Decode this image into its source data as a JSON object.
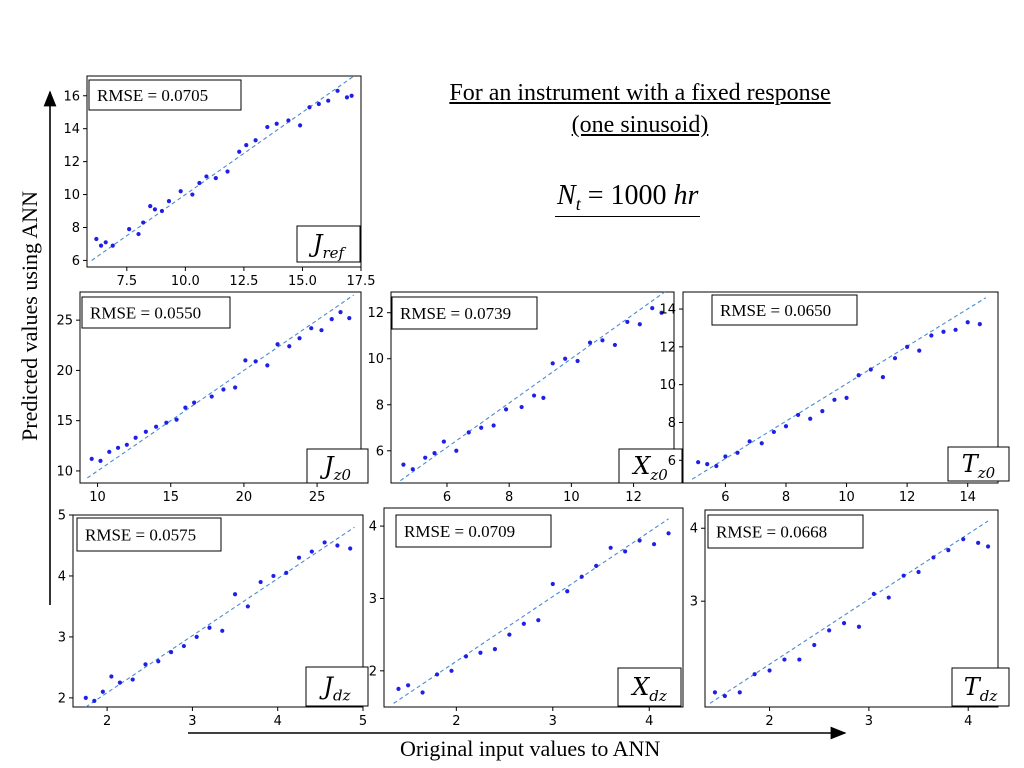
{
  "title_line1": "For an instrument with a fixed response",
  "title_line2": "(one sinusoid)",
  "equation": {
    "symbol": "N",
    "subscript": "t",
    "rest": " = 1000 ",
    "unit": "hr"
  },
  "xlabel": "Original input values to ANN",
  "ylabel": "Predicted values using ANN",
  "colors": {
    "points": "#1f1fe6",
    "fit_line": "#4a8bd0",
    "axis": "#000000"
  },
  "chart_data": [
    {
      "type": "scatter",
      "id": "jref",
      "panel_label": {
        "base": "J",
        "sub": "ref"
      },
      "rmse": "RMSE = 0.0705",
      "xlim": [
        5.8,
        17.5
      ],
      "ylim": [
        5.6,
        17.2
      ],
      "xticks": [
        7.5,
        10.0,
        12.5,
        15.0,
        17.5
      ],
      "xtick_labels": [
        "7.5",
        "10.0",
        "12.5",
        "15.0",
        "17.5"
      ],
      "yticks": [
        6,
        8,
        10,
        12,
        14,
        16
      ],
      "ytick_labels": [
        "6",
        "8",
        "10",
        "12",
        "14",
        "16"
      ],
      "fit_line": [
        [
          6.0,
          6.0
        ],
        [
          17.2,
          17.2
        ]
      ],
      "x": [
        6.2,
        6.4,
        6.6,
        6.9,
        7.6,
        8.0,
        8.2,
        8.5,
        8.7,
        9.0,
        9.3,
        9.8,
        10.3,
        10.6,
        10.9,
        11.3,
        11.8,
        12.3,
        12.6,
        13.0,
        13.5,
        13.9,
        14.4,
        14.9,
        15.3,
        15.7,
        16.1,
        16.5,
        16.9,
        17.1
      ],
      "y": [
        7.3,
        6.9,
        7.1,
        6.9,
        7.9,
        7.6,
        8.3,
        9.3,
        9.1,
        9.0,
        9.6,
        10.2,
        10.0,
        10.7,
        11.1,
        11.0,
        11.4,
        12.6,
        13.0,
        13.3,
        14.1,
        14.3,
        14.5,
        14.2,
        15.3,
        15.5,
        15.7,
        16.3,
        15.9,
        16.0
      ]
    },
    {
      "type": "scatter",
      "id": "jz0",
      "panel_label": {
        "base": "J",
        "sub": "z0"
      },
      "rmse": "RMSE = 0.0550",
      "xlim": [
        8.8,
        28.0
      ],
      "ylim": [
        8.8,
        27.8
      ],
      "xticks": [
        10,
        15,
        20,
        25
      ],
      "xtick_labels": [
        "10",
        "15",
        "20",
        "25"
      ],
      "yticks": [
        10,
        15,
        20,
        25
      ],
      "ytick_labels": [
        "10",
        "15",
        "20",
        "25"
      ],
      "fit_line": [
        [
          9.3,
          9.3
        ],
        [
          27.5,
          27.5
        ]
      ],
      "x": [
        9.6,
        10.2,
        10.8,
        11.4,
        12.0,
        12.6,
        13.3,
        14.0,
        14.7,
        15.4,
        16.0,
        16.6,
        17.8,
        18.6,
        19.4,
        20.1,
        20.8,
        21.6,
        22.3,
        23.1,
        23.8,
        24.6,
        25.3,
        26.0,
        26.6,
        27.2
      ],
      "y": [
        11.2,
        11.0,
        11.9,
        12.3,
        12.6,
        13.3,
        13.9,
        14.4,
        14.8,
        15.1,
        16.3,
        16.8,
        17.4,
        18.1,
        18.3,
        21.0,
        20.9,
        20.5,
        22.6,
        22.4,
        23.2,
        24.2,
        24.0,
        25.1,
        25.8,
        25.2
      ]
    },
    {
      "type": "scatter",
      "id": "xz0",
      "panel_label": {
        "base": "X",
        "sub": "z0"
      },
      "rmse": "RMSE = 0.0739",
      "xlim": [
        4.2,
        13.3
      ],
      "ylim": [
        4.6,
        12.9
      ],
      "xticks": [
        6,
        8,
        10,
        12
      ],
      "xtick_labels": [
        "6",
        "8",
        "10",
        "12"
      ],
      "yticks": [
        6,
        8,
        10,
        12
      ],
      "ytick_labels": [
        "6",
        "8",
        "10",
        "12"
      ],
      "fit_line": [
        [
          4.5,
          4.7
        ],
        [
          13.0,
          12.9
        ]
      ],
      "x": [
        4.6,
        4.9,
        5.3,
        5.6,
        5.9,
        6.3,
        6.7,
        7.1,
        7.5,
        7.9,
        8.4,
        8.8,
        9.1,
        9.4,
        9.8,
        10.2,
        10.6,
        11.0,
        11.4,
        11.8,
        12.2,
        12.6,
        12.9
      ],
      "y": [
        5.4,
        5.2,
        5.7,
        5.9,
        6.4,
        6.0,
        6.8,
        7.0,
        7.1,
        7.8,
        7.9,
        8.4,
        8.3,
        9.8,
        10.0,
        9.9,
        10.7,
        10.8,
        10.6,
        11.6,
        11.5,
        12.2,
        12.0
      ]
    },
    {
      "type": "scatter",
      "id": "tz0",
      "panel_label": {
        "base": "T",
        "sub": "z0"
      },
      "rmse": "RMSE = 0.0650",
      "xlim": [
        4.6,
        15.0
      ],
      "ylim": [
        4.8,
        14.9
      ],
      "xticks": [
        6,
        8,
        10,
        12,
        14
      ],
      "xtick_labels": [
        "6",
        "8",
        "10",
        "12",
        "14"
      ],
      "yticks": [
        6,
        8,
        10,
        12,
        14
      ],
      "ytick_labels": [
        "6",
        "8",
        "10",
        "12",
        "14"
      ],
      "fit_line": [
        [
          4.9,
          5.0
        ],
        [
          14.6,
          14.6
        ]
      ],
      "x": [
        5.1,
        5.4,
        5.7,
        6.0,
        6.4,
        6.8,
        7.2,
        7.6,
        8.0,
        8.4,
        8.8,
        9.2,
        9.6,
        10.0,
        10.4,
        10.8,
        11.2,
        11.6,
        12.0,
        12.4,
        12.8,
        13.2,
        13.6,
        14.0,
        14.4
      ],
      "y": [
        5.9,
        5.8,
        5.7,
        6.2,
        6.4,
        7.0,
        6.9,
        7.5,
        7.8,
        8.4,
        8.2,
        8.6,
        9.2,
        9.3,
        10.5,
        10.8,
        10.4,
        11.4,
        12.0,
        11.8,
        12.6,
        12.8,
        12.9,
        13.3,
        13.2
      ]
    },
    {
      "type": "scatter",
      "id": "jdz",
      "panel_label": {
        "base": "J",
        "sub": "dz"
      },
      "rmse": "RMSE = 0.0575",
      "xlim": [
        1.6,
        5.0
      ],
      "ylim": [
        1.85,
        5.0
      ],
      "xticks": [
        2,
        3,
        4,
        5
      ],
      "xtick_labels": [
        "2",
        "3",
        "4",
        "5"
      ],
      "yticks": [
        2,
        3,
        4,
        5
      ],
      "ytick_labels": [
        "2",
        "3",
        "4",
        "5"
      ],
      "fit_line": [
        [
          1.75,
          1.85
        ],
        [
          4.9,
          4.8
        ]
      ],
      "x": [
        1.75,
        1.85,
        1.95,
        2.05,
        2.15,
        2.3,
        2.45,
        2.6,
        2.75,
        2.9,
        3.05,
        3.2,
        3.35,
        3.5,
        3.65,
        3.8,
        3.95,
        4.1,
        4.25,
        4.4,
        4.55,
        4.7,
        4.85
      ],
      "y": [
        2.0,
        1.95,
        2.1,
        2.35,
        2.25,
        2.3,
        2.55,
        2.6,
        2.75,
        2.85,
        3.0,
        3.15,
        3.1,
        3.7,
        3.5,
        3.9,
        4.0,
        4.05,
        4.3,
        4.4,
        4.55,
        4.5,
        4.45
      ]
    },
    {
      "type": "scatter",
      "id": "xdz",
      "panel_label": {
        "base": "X",
        "sub": "dz"
      },
      "rmse": "RMSE = 0.0709",
      "xlim": [
        1.25,
        4.35
      ],
      "ylim": [
        1.5,
        4.25
      ],
      "xticks": [
        2,
        3,
        4
      ],
      "xtick_labels": [
        "2",
        "3",
        "4"
      ],
      "yticks": [
        2,
        3,
        4
      ],
      "ytick_labels": [
        "2",
        "3",
        "4"
      ],
      "fit_line": [
        [
          1.35,
          1.55
        ],
        [
          4.2,
          4.1
        ]
      ],
      "x": [
        1.4,
        1.5,
        1.65,
        1.8,
        1.95,
        2.1,
        2.25,
        2.4,
        2.55,
        2.7,
        2.85,
        3.0,
        3.15,
        3.3,
        3.45,
        3.6,
        3.75,
        3.9,
        4.05,
        4.2
      ],
      "y": [
        1.75,
        1.8,
        1.7,
        1.95,
        2.0,
        2.2,
        2.25,
        2.3,
        2.5,
        2.65,
        2.7,
        3.2,
        3.1,
        3.3,
        3.45,
        3.7,
        3.65,
        3.8,
        3.75,
        3.9
      ]
    },
    {
      "type": "scatter",
      "id": "tdz",
      "panel_label": {
        "base": "T",
        "sub": "dz"
      },
      "rmse": "RMSE = 0.0668",
      "xlim": [
        1.35,
        4.3
      ],
      "ylim": [
        1.55,
        4.25
      ],
      "xticks": [
        2,
        3,
        4
      ],
      "xtick_labels": [
        "2",
        "3",
        "4"
      ],
      "yticks": [
        3,
        4
      ],
      "ytick_labels": [
        "3",
        "4"
      ],
      "fit_line": [
        [
          1.4,
          1.6
        ],
        [
          4.2,
          4.1
        ]
      ],
      "x": [
        1.45,
        1.55,
        1.7,
        1.85,
        2.0,
        2.15,
        2.3,
        2.45,
        2.6,
        2.75,
        2.9,
        3.05,
        3.2,
        3.35,
        3.5,
        3.65,
        3.8,
        3.95,
        4.1,
        4.2
      ],
      "y": [
        1.75,
        1.7,
        1.75,
        2.0,
        2.05,
        2.2,
        2.2,
        2.4,
        2.6,
        2.7,
        2.65,
        3.1,
        3.05,
        3.35,
        3.4,
        3.6,
        3.7,
        3.85,
        3.8,
        3.75
      ]
    }
  ]
}
